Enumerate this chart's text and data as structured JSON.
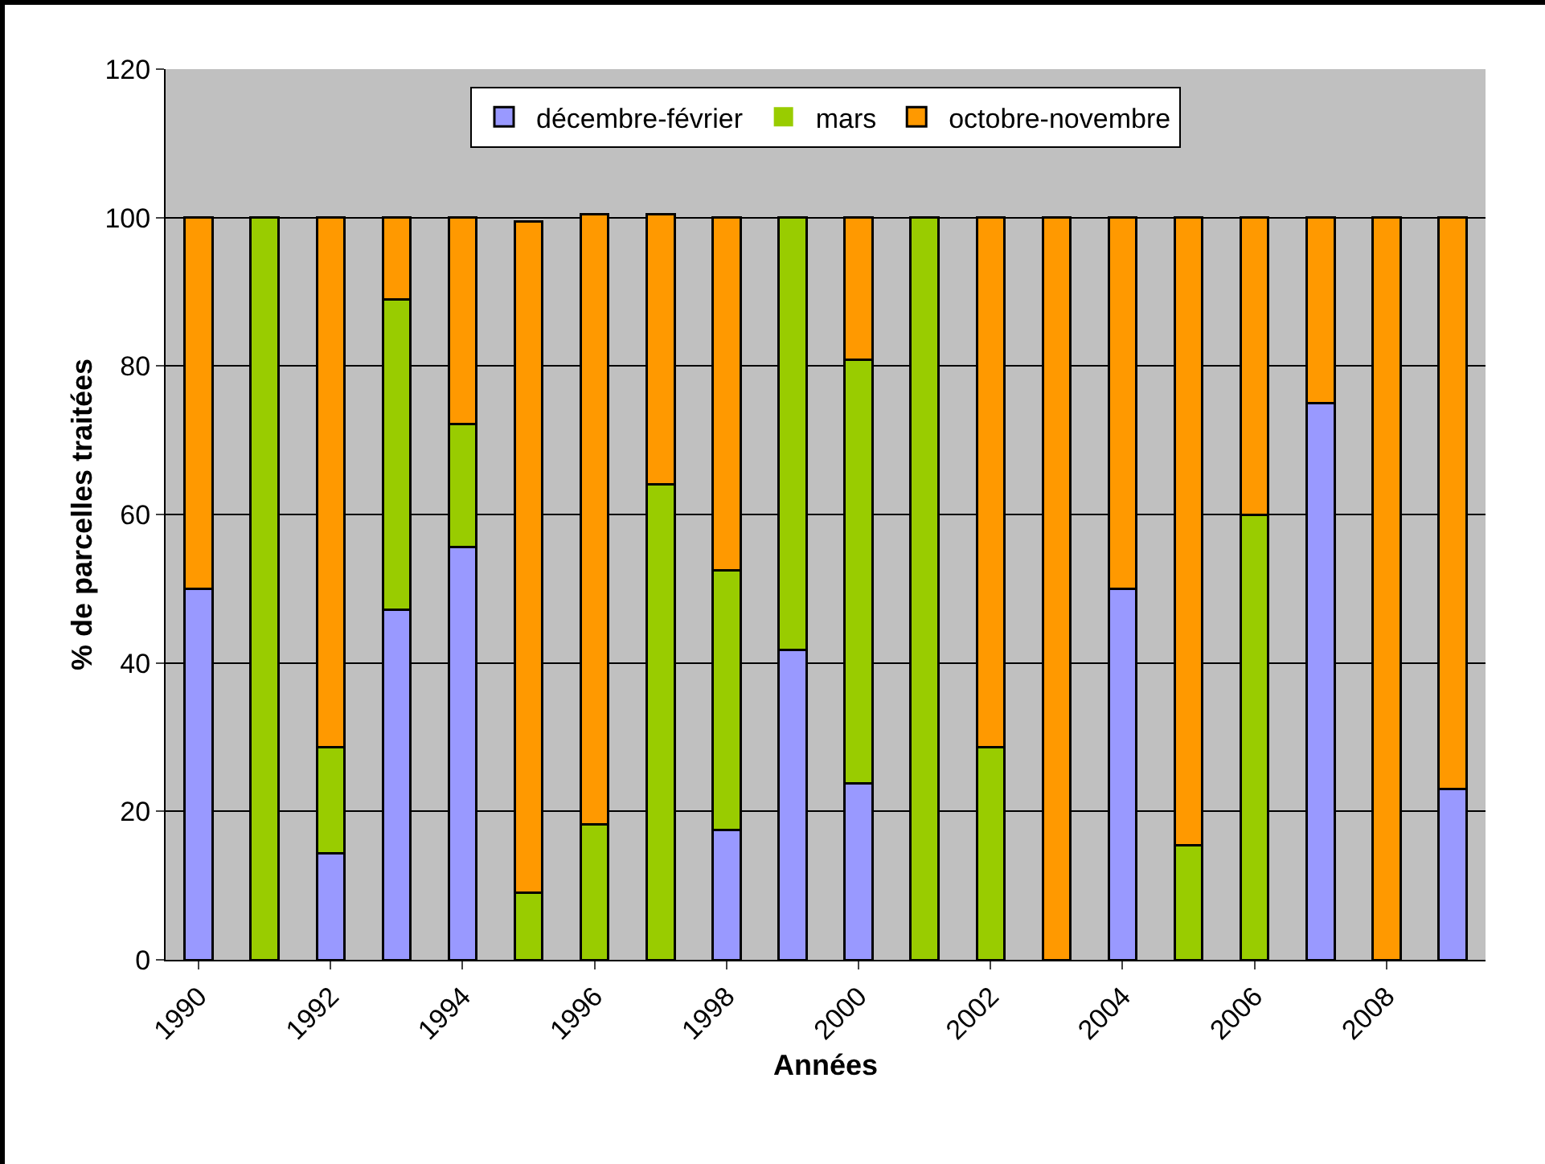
{
  "chart_data": {
    "type": "bar",
    "stacked": true,
    "xlabel": "Années",
    "ylabel": "% de parcelles traitées",
    "categories": [
      "1990",
      null,
      "1992",
      null,
      "1994",
      null,
      "1996",
      null,
      "1998",
      null,
      "2000",
      null,
      "2002",
      null,
      "2004",
      null,
      "2006",
      null,
      "2008",
      null
    ],
    "series": [
      {
        "name": "décembre-février",
        "color": "#9999ff",
        "values": [
          50,
          0,
          14.3,
          47.2,
          55.6,
          0,
          0,
          0,
          17.5,
          41.7,
          23.8,
          0,
          0,
          0,
          50,
          0,
          0,
          75,
          0,
          23
        ]
      },
      {
        "name": "mars",
        "color": "#99cc00",
        "values": [
          0,
          100,
          14.3,
          41.8,
          16.6,
          9,
          18.3,
          64.1,
          35,
          58.3,
          57.1,
          100,
          28.6,
          0,
          0,
          15.4,
          60,
          0,
          0,
          0
        ]
      },
      {
        "name": "octobre-novembre",
        "color": "#ff9900",
        "values": [
          50,
          0,
          71.4,
          11,
          27.8,
          90.5,
          82.1,
          36.3,
          47.5,
          0,
          19.1,
          0,
          71.4,
          100,
          50,
          84.6,
          40,
          25,
          100,
          77
        ]
      }
    ],
    "ylim": [
      0,
      120
    ],
    "yticks": [
      0,
      20,
      40,
      60,
      80,
      100,
      120
    ],
    "grid": "y",
    "legend": "top"
  }
}
